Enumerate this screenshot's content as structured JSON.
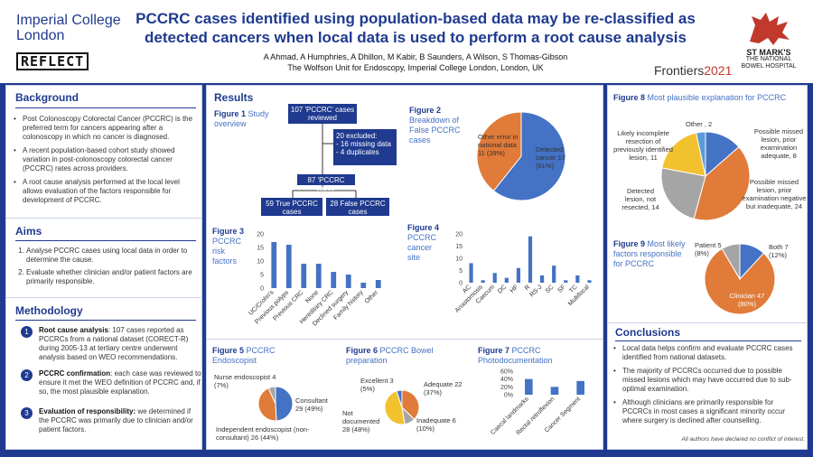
{
  "header": {
    "logo_line1": "Imperial College",
    "logo_line2": "London",
    "reflect_logo": "REFLECT",
    "title_line1": "PCCRC cases identified using population-based data may be re-classified as",
    "title_line2": "detected cancers when local data is used to perform a root cause analysis",
    "authors": "A Ahmad, A Humphries, A Dhillon, M Kabir, B Saunders, A Wilson, S Thomas-Gibson",
    "affiliation": "The Wolfson Unit for Endoscopy, Imperial College London, London, UK",
    "frontiers_word": "Frontiers",
    "frontiers_year": "2021",
    "stmarks_line1": "ST MARK'S",
    "stmarks_line2": "THE NATIONAL",
    "stmarks_line3": "BOWEL HOSPITAL"
  },
  "colors": {
    "navy": "#1f3a8f",
    "blue": "#4472c4",
    "orange": "#e07b39",
    "gray": "#a5a5a5",
    "gold": "#f2c12e"
  },
  "background": {
    "heading": "Background",
    "items": [
      "Post Colonoscopy Colorectal Cancer (PCCRC) is the preferred term for cancers appearing after a colonoscopy in which no cancer is diagnosed.",
      "A recent population-based cohort study showed variation in post-colonoscopy colorectal cancer (PCCRC) rates across providers.",
      "A root cause analysis performed at the local level allows evaluation of the factors responsible for development of PCCRC."
    ]
  },
  "aims": {
    "heading": "Aims",
    "items": [
      "Analyse PCCRC cases using local data in order to determine the cause.",
      "Evaluate whether clinician and/or patient factors are primarily responsible."
    ]
  },
  "methodology": {
    "heading": "Methodology",
    "steps": [
      {
        "num": "1",
        "bold": "Root cause analysis",
        "text": ": 107 cases reported as PCCRCs from a national dataset (CORECT-R) during 2005-13 at tertiary centre underwent analysis based on WEO recommendations."
      },
      {
        "num": "2",
        "bold": "PCCRC confirmation",
        "text": ": each case was reviewed to ensure it met the WEO definition of PCCRC and, if so, the most plausible explanation."
      },
      {
        "num": "3",
        "bold": "Evaluation of responsibility:",
        "text": " we determined if the PCCRC was primarily due to clinician and/or patient factors."
      }
    ]
  },
  "results": {
    "heading": "Results"
  },
  "fig1": {
    "title_bold": "Figure 1",
    "title": " Study overview",
    "box_reviewed": "107 'PCCRC' cases reviewed",
    "box_excluded_1": "20 excluded:",
    "box_excluded_2": "- 16 missing data",
    "box_excluded_3": "- 4 duplicates",
    "box_pccrc": "87 'PCCRC cases'",
    "box_true": "59 True PCCRC cases",
    "box_false": "28 False PCCRC cases"
  },
  "fig2": {
    "title_bold": "Figure 2",
    "title": " Breakdown of False PCCRC cases",
    "label_other": "Other error in national data 11 (39%)",
    "label_detected": "Detected cancer 17 (61%)"
  },
  "fig3": {
    "title_bold": "Figure 3",
    "title": " PCCRC risk factors"
  },
  "fig4": {
    "title_bold": "Figure 4",
    "title": " PCCRC cancer site"
  },
  "fig5": {
    "title_bold": "Figure 5",
    "title": " PCCRC Endoscopist",
    "label_nurse": "Nurse endoscopist 4 (7%)",
    "label_consultant": "Consultant 29 (49%)",
    "label_independent": "Independent endoscopist (non-consultant) 26 (44%)"
  },
  "fig6": {
    "title_bold": "Figure 6",
    "title": " PCCRC Bowel preparation",
    "label_excellent": "Excellent 3 (5%)",
    "label_adequate": "Adequate 22 (37%)",
    "label_notdoc": "Not documented 28 (48%)",
    "label_inadequate": "Inadequate 6 (10%)"
  },
  "fig7": {
    "title_bold": "Figure 7",
    "title": " PCCRC Photodocumentation"
  },
  "fig8": {
    "title_bold": "Figure 8",
    "title": " Most plausible explanation for PCCRC",
    "label_other": "Other , 2",
    "label_incomplete": "Likely incomplete resection of previously identified lesion, 11",
    "label_missed_adequate": "Possible missed lesion, prior examination adequate, 8",
    "label_detected": "Detected lesion, not resected, 14",
    "label_missed_inadequate": "Possible missed lesion, prior examination negative but inadequate, 24"
  },
  "fig9": {
    "title_bold": "Figure 9",
    "title": " Most likely factors responsible for PCCRC",
    "label_patient": "Patient 5 (8%)",
    "label_both": "Both 7 (12%)",
    "label_clinician": "Clinician 47 (80%)"
  },
  "conclusions": {
    "heading": "Conclusions",
    "items": [
      "Local data helps confirm and evaluate PCCRC cases identified from national datasets.",
      "The majority of PCCRCs occurred due to possible missed lesions which may have occurred due to sub-optimal examination.",
      "Although clinicians are primarily responsible for PCCRCs in most cases a significant minority occur where surgery is declined after counselling."
    ],
    "disclaimer": "All authors have declared no conflict of interest."
  },
  "chart_data": [
    {
      "id": "fig2",
      "type": "pie",
      "title": "Figure 2 Breakdown of False PCCRC cases",
      "slices": [
        {
          "name": "Detected cancer",
          "value": 17,
          "percent": 61,
          "color": "#4472c4"
        },
        {
          "name": "Other error in national data",
          "value": 11,
          "percent": 39,
          "color": "#e07b39"
        }
      ]
    },
    {
      "id": "fig3",
      "type": "bar",
      "title": "Figure 3 PCCRC risk factors",
      "categories": [
        "UC/Crohn's",
        "Previous polyps",
        "Previous CRC",
        "None",
        "Hereditary CRC",
        "Declined surgery",
        "Family history",
        "Other"
      ],
      "values": [
        17,
        16,
        9,
        9,
        6,
        5,
        2,
        3
      ],
      "ylim": [
        0,
        20
      ],
      "yticks": [
        0,
        5,
        10,
        15,
        20
      ],
      "color": "#4472c4"
    },
    {
      "id": "fig4",
      "type": "bar",
      "title": "Figure 4 PCCRC cancer site",
      "categories": [
        "AC",
        "Anastomosis",
        "Caecum",
        "DC",
        "HF",
        "R",
        "RS-J",
        "SC",
        "SF",
        "TC",
        "Multifocal"
      ],
      "values": [
        8,
        1,
        4,
        2,
        6,
        19,
        3,
        7,
        1,
        3,
        1
      ],
      "ylim": [
        0,
        20
      ],
      "yticks": [
        0,
        5,
        10,
        15,
        20
      ],
      "color": "#4472c4"
    },
    {
      "id": "fig5",
      "type": "pie",
      "title": "Figure 5 PCCRC Endoscopist",
      "slices": [
        {
          "name": "Consultant",
          "value": 29,
          "percent": 49,
          "color": "#4472c4"
        },
        {
          "name": "Independent endoscopist (non-consultant)",
          "value": 26,
          "percent": 44,
          "color": "#e07b39"
        },
        {
          "name": "Nurse endoscopist",
          "value": 4,
          "percent": 7,
          "color": "#a5a5a5"
        }
      ]
    },
    {
      "id": "fig6",
      "type": "pie",
      "title": "Figure 6 PCCRC Bowel preparation",
      "slices": [
        {
          "name": "Adequate",
          "value": 22,
          "percent": 37,
          "color": "#e07b39"
        },
        {
          "name": "Inadequate",
          "value": 6,
          "percent": 10,
          "color": "#a5a5a5"
        },
        {
          "name": "Not documented",
          "value": 28,
          "percent": 48,
          "color": "#f2c12e"
        },
        {
          "name": "Excellent",
          "value": 3,
          "percent": 5,
          "color": "#4472c4"
        }
      ]
    },
    {
      "id": "fig7",
      "type": "bar",
      "title": "Figure 7 PCCRC Photodocumentation",
      "categories": [
        "Caecal landmarks",
        "Rectal retroflexion",
        "Cancer Segment"
      ],
      "values": [
        40,
        20,
        35
      ],
      "ylim": [
        0,
        60
      ],
      "yticks": [
        "0%",
        "20%",
        "40%",
        "60%"
      ],
      "color": "#4472c4"
    },
    {
      "id": "fig8",
      "type": "pie",
      "title": "Figure 8 Most plausible explanation for PCCRC",
      "slices": [
        {
          "name": "Possible missed lesion, prior examination adequate",
          "value": 8,
          "color": "#4472c4"
        },
        {
          "name": "Possible missed lesion, prior examination negative but inadequate",
          "value": 24,
          "color": "#e07b39"
        },
        {
          "name": "Detected lesion, not resected",
          "value": 14,
          "color": "#a5a5a5"
        },
        {
          "name": "Likely incomplete resection of previously identified lesion",
          "value": 11,
          "color": "#f2c12e"
        },
        {
          "name": "Other",
          "value": 2,
          "color": "#5b9bd5"
        }
      ]
    },
    {
      "id": "fig9",
      "type": "pie",
      "title": "Figure 9 Most likely factors responsible for PCCRC",
      "slices": [
        {
          "name": "Both",
          "value": 7,
          "percent": 12,
          "color": "#4472c4"
        },
        {
          "name": "Clinician",
          "value": 47,
          "percent": 80,
          "color": "#e07b39"
        },
        {
          "name": "Patient",
          "value": 5,
          "percent": 8,
          "color": "#a5a5a5"
        }
      ]
    }
  ]
}
